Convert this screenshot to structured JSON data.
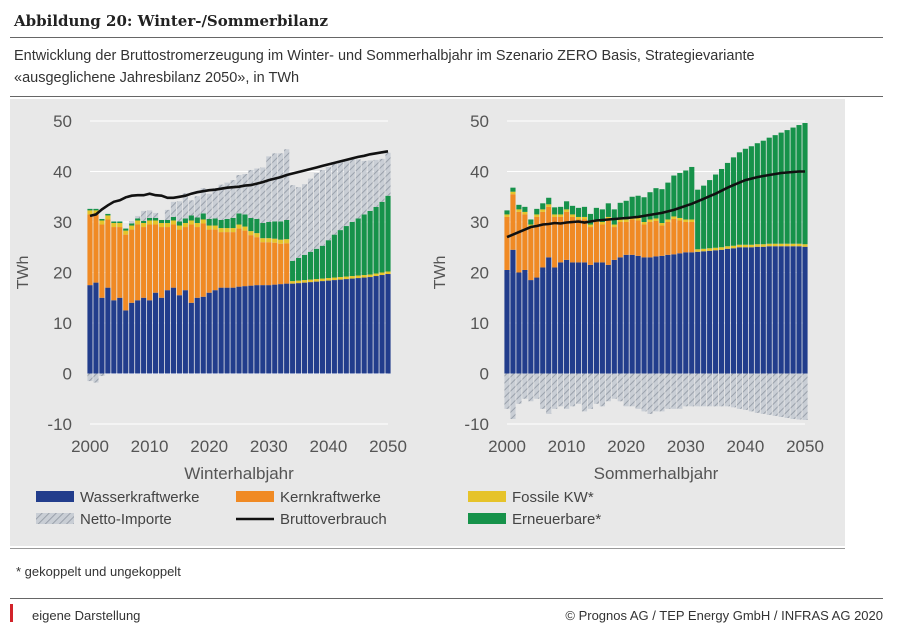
{
  "header": {
    "title": "Abbildung 20: Winter-/Sommerbilanz",
    "subtitle_line1": "Entwicklung der Bruttostromerzeugung im Winter- und Sommerhalbjahr im Szenario ZERO Basis, Strategievariante",
    "subtitle_line2": "«ausgeglichene Jahresbilanz 2050», in TWh"
  },
  "footer": {
    "footnote": "* gekoppelt und ungekoppelt",
    "source": "eigene Darstellung",
    "copyright": "© Prognos AG / TEP Energy GmbH / INFRAS AG 2020"
  },
  "colors": {
    "wasser": "#223d8c",
    "kern": "#f08a24",
    "fossil": "#e6c32a",
    "erneuerbar": "#16924a",
    "import": "#b8bec6",
    "verbrauch": "#111111",
    "panel": "#e8e8e8"
  },
  "legend": [
    {
      "key": "wasser",
      "label": "Wasserkraftwerke",
      "type": "solid"
    },
    {
      "key": "kern",
      "label": "Kernkraftwerke",
      "type": "solid"
    },
    {
      "key": "fossil",
      "label": "Fossile KW*",
      "type": "solid"
    },
    {
      "key": "import",
      "label": "Netto-Importe",
      "type": "hatch"
    },
    {
      "key": "verbrauch",
      "label": "Bruttoverbrauch",
      "type": "line"
    },
    {
      "key": "erneuerbar",
      "label": "Erneuerbare*",
      "type": "solid"
    }
  ],
  "chart_data": [
    {
      "type": "area",
      "id": "winter",
      "xlabel": "Winterhalbjahr",
      "ylabel": "TWh",
      "xlim": [
        2000,
        2050
      ],
      "ylim": [
        -10,
        50
      ],
      "xticks": [
        2000,
        2010,
        2020,
        2030,
        2040,
        2050
      ],
      "yticks": [
        -10,
        0,
        10,
        20,
        30,
        40,
        50
      ],
      "x": [
        2000,
        2001,
        2002,
        2003,
        2004,
        2005,
        2006,
        2007,
        2008,
        2009,
        2010,
        2011,
        2012,
        2013,
        2014,
        2015,
        2016,
        2017,
        2018,
        2019,
        2020,
        2021,
        2022,
        2023,
        2024,
        2025,
        2026,
        2027,
        2028,
        2029,
        2030,
        2031,
        2032,
        2033,
        2034,
        2035,
        2036,
        2037,
        2038,
        2039,
        2040,
        2041,
        2042,
        2043,
        2044,
        2045,
        2046,
        2047,
        2048,
        2049,
        2050
      ],
      "series": [
        {
          "key": "wasser",
          "values": [
            17.5,
            18,
            15,
            17,
            14.5,
            15,
            12.5,
            14,
            14.5,
            15,
            14.5,
            16,
            15,
            16.5,
            17,
            15.5,
            16.5,
            14,
            15,
            15.2,
            16,
            16.5,
            17,
            17,
            17,
            17.2,
            17.3,
            17.4,
            17.5,
            17.5,
            17.5,
            17.6,
            17.7,
            17.8,
            17.8,
            17.9,
            18,
            18.1,
            18.2,
            18.3,
            18.4,
            18.5,
            18.6,
            18.7,
            18.8,
            18.9,
            19,
            19.1,
            19.3,
            19.5,
            19.7
          ]
        },
        {
          "key": "kern",
          "values": [
            14,
            13.5,
            14.5,
            13.5,
            14.5,
            14,
            15,
            14.5,
            15,
            14,
            15,
            13.5,
            14,
            12.5,
            12.5,
            13,
            12.5,
            15.5,
            14,
            14.5,
            12.5,
            12,
            11,
            11,
            11,
            11.5,
            11,
            10,
            9.5,
            8.5,
            8.5,
            8.3,
            8,
            8,
            0,
            0,
            0,
            0,
            0,
            0,
            0,
            0,
            0,
            0,
            0,
            0,
            0,
            0,
            0,
            0,
            0
          ]
        },
        {
          "key": "fossil",
          "values": [
            0.8,
            0.8,
            0.8,
            0.8,
            0.8,
            0.8,
            0.8,
            0.8,
            0.8,
            0.8,
            0.8,
            0.8,
            0.8,
            0.8,
            0.8,
            0.8,
            0.8,
            0.8,
            0.8,
            0.8,
            0.8,
            0.8,
            0.8,
            0.8,
            0.8,
            0.8,
            0.8,
            0.8,
            0.8,
            0.8,
            0.8,
            0.8,
            0.8,
            0.8,
            0.5,
            0.5,
            0.5,
            0.5,
            0.5,
            0.5,
            0.5,
            0.5,
            0.5,
            0.5,
            0.5,
            0.5,
            0.5,
            0.5,
            0.5,
            0.5,
            0.5
          ]
        },
        {
          "key": "erneuerbar",
          "values": [
            0.3,
            0.3,
            0.3,
            0.3,
            0.3,
            0.3,
            0.4,
            0.4,
            0.4,
            0.4,
            0.5,
            0.5,
            0.6,
            0.6,
            0.7,
            0.8,
            0.9,
            1,
            1.1,
            1.2,
            1.3,
            1.4,
            1.6,
            1.8,
            2,
            2.2,
            2.4,
            2.6,
            2.8,
            3,
            3.2,
            3.4,
            3.6,
            3.8,
            4,
            4.5,
            5,
            5.5,
            6,
            6.5,
            7.5,
            8.5,
            9.3,
            10,
            10.7,
            11.3,
            12,
            12.6,
            13.2,
            14,
            15
          ]
        },
        {
          "key": "import",
          "values": [
            -1.5,
            -1.8,
            -0.5,
            0,
            0,
            0,
            0,
            0.5,
            0.5,
            2,
            1.5,
            1,
            0,
            2,
            3,
            4,
            5,
            3,
            4.2,
            5,
            5,
            6,
            7,
            7.2,
            7.5,
            7.6,
            8,
            9.5,
            10,
            11,
            13,
            13.5,
            13.5,
            14,
            15,
            14,
            14,
            14.5,
            15,
            15,
            14.5,
            14,
            13.5,
            13,
            12.5,
            11.7,
            10.6,
            10,
            9.3,
            8.5,
            8.5
          ]
        }
      ],
      "line": {
        "key": "verbrauch",
        "values": [
          31.2,
          31.5,
          32.5,
          33.3,
          34,
          34.3,
          34.9,
          35.2,
          35.3,
          35.3,
          35.6,
          35.3,
          35.2,
          34.8,
          34.8,
          35,
          35.2,
          35.6,
          35.9,
          36.1,
          36.3,
          36.4,
          36.6,
          36.8,
          36.9,
          37,
          37.2,
          37.3,
          37.6,
          37.9,
          38.3,
          38.6,
          38.9,
          39.3,
          39.6,
          39.9,
          40.2,
          40.5,
          40.8,
          41.1,
          41.4,
          41.7,
          42,
          42.3,
          42.6,
          42.9,
          43.1,
          43.4,
          43.6,
          43.8,
          44
        ]
      }
    },
    {
      "type": "area",
      "id": "sommer",
      "xlabel": "Sommerhalbjahr",
      "ylabel": "TWh",
      "xlim": [
        2000,
        2050
      ],
      "ylim": [
        -10,
        50
      ],
      "xticks": [
        2000,
        2010,
        2020,
        2030,
        2040,
        2050
      ],
      "yticks": [
        -10,
        0,
        10,
        20,
        30,
        40,
        50
      ],
      "x": [
        2000,
        2001,
        2002,
        2003,
        2004,
        2005,
        2006,
        2007,
        2008,
        2009,
        2010,
        2011,
        2012,
        2013,
        2014,
        2015,
        2016,
        2017,
        2018,
        2019,
        2020,
        2021,
        2022,
        2023,
        2024,
        2025,
        2026,
        2027,
        2028,
        2029,
        2030,
        2031,
        2032,
        2033,
        2034,
        2035,
        2036,
        2037,
        2038,
        2039,
        2040,
        2041,
        2042,
        2043,
        2044,
        2045,
        2046,
        2047,
        2048,
        2049,
        2050
      ],
      "series": [
        {
          "key": "wasser",
          "values": [
            20.5,
            24.5,
            20,
            20.5,
            18.5,
            19,
            21,
            23,
            21,
            22,
            22.5,
            22,
            22,
            22,
            21.5,
            22,
            22,
            21.5,
            22.5,
            23,
            23.5,
            23.5,
            23.3,
            23,
            23,
            23.2,
            23.3,
            23.5,
            23.6,
            23.8,
            24,
            24,
            24.1,
            24.2,
            24.3,
            24.4,
            24.5,
            24.7,
            24.8,
            25,
            25,
            25,
            25.1,
            25.1,
            25.2,
            25.2,
            25.2,
            25.2,
            25.2,
            25.2,
            25.1
          ]
        },
        {
          "key": "kern",
          "values": [
            10.5,
            11,
            12,
            11,
            10.5,
            12,
            11,
            10,
            10,
            9,
            9.5,
            9,
            8.5,
            8.5,
            7.5,
            8,
            7.5,
            9,
            6.5,
            7,
            6.5,
            7,
            7,
            6.5,
            7,
            7,
            6,
            6.5,
            7,
            6.5,
            6,
            6,
            0,
            0,
            0,
            0,
            0,
            0,
            0,
            0,
            0,
            0,
            0,
            0,
            0,
            0,
            0,
            0,
            0,
            0,
            0
          ]
        },
        {
          "key": "fossil",
          "values": [
            0.5,
            0.5,
            0.5,
            0.5,
            0.5,
            0.5,
            0.5,
            0.5,
            0.5,
            0.5,
            0.5,
            0.5,
            0.5,
            0.5,
            0.5,
            0.5,
            0.5,
            0.5,
            0.5,
            0.5,
            0.5,
            0.5,
            0.5,
            0.5,
            0.5,
            0.5,
            0.5,
            0.5,
            0.5,
            0.5,
            0.5,
            0.5,
            0.5,
            0.5,
            0.5,
            0.5,
            0.5,
            0.5,
            0.5,
            0.5,
            0.5,
            0.5,
            0.5,
            0.5,
            0.5,
            0.5,
            0.5,
            0.5,
            0.5,
            0.5,
            0.5
          ]
        },
        {
          "key": "erneuerbar",
          "values": [
            0.8,
            0.8,
            0.9,
            1,
            1,
            1.1,
            1.2,
            1.3,
            1.4,
            1.5,
            1.6,
            1.7,
            1.8,
            2,
            2.1,
            2.3,
            2.5,
            2.7,
            3,
            3.3,
            3.7,
            4,
            4.4,
            4.9,
            5.4,
            6,
            6.7,
            7.3,
            8.1,
            8.9,
            9.7,
            10.4,
            11.8,
            12.5,
            13.5,
            14.5,
            15.5,
            16.5,
            17.5,
            18.3,
            19,
            19.5,
            20,
            20.5,
            21,
            21.5,
            22,
            22.5,
            23,
            23.5,
            24
          ]
        },
        {
          "key": "import",
          "values": [
            -7,
            -9,
            -6,
            -5,
            -5.5,
            -5,
            -7,
            -8,
            -7,
            -6.5,
            -7,
            -6.5,
            -6,
            -7.5,
            -7,
            -6,
            -6.5,
            -5.5,
            -5,
            -5.5,
            -6.5,
            -6.5,
            -7,
            -7.5,
            -8,
            -7.5,
            -7.5,
            -7,
            -7,
            -7,
            -6.5,
            -6.5,
            -6.5,
            -6.5,
            -6.5,
            -6.5,
            -6.5,
            -6.5,
            -6.7,
            -7,
            -7.2,
            -7.5,
            -7.8,
            -8,
            -8.2,
            -8.4,
            -8.6,
            -8.8,
            -9,
            -9.1,
            -9.2
          ]
        }
      ],
      "line": {
        "key": "verbrauch",
        "values": [
          27,
          27.5,
          28,
          28.5,
          29,
          29.2,
          29.5,
          29.6,
          29.8,
          29.7,
          29.9,
          30,
          30.1,
          29.9,
          30.1,
          30.3,
          30.4,
          30.5,
          30.6,
          30.7,
          30.8,
          30.9,
          31,
          31.2,
          31.4,
          31.6,
          31.8,
          32.1,
          32.4,
          32.8,
          33.2,
          33.6,
          34.1,
          34.6,
          35.1,
          35.6,
          36.2,
          36.8,
          37.3,
          37.8,
          38.3,
          38.6,
          38.9,
          39.1,
          39.3,
          39.5,
          39.7,
          39.8,
          39.9,
          40,
          40
        ]
      }
    }
  ]
}
